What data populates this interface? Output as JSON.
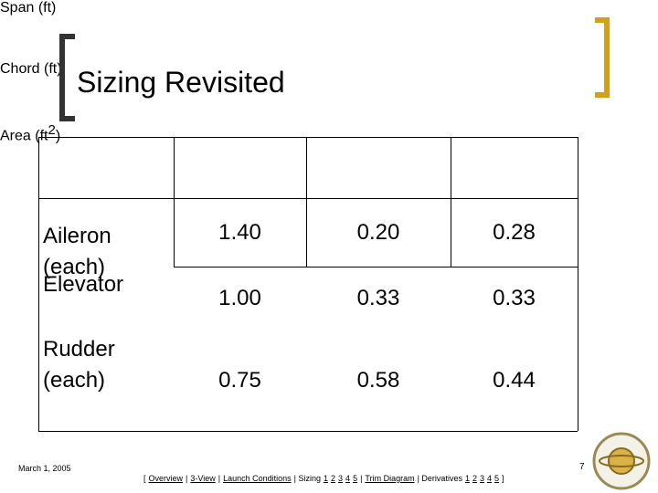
{
  "title": "Sizing Revisited",
  "table": {
    "header": [
      {
        "text": "Span (ft)"
      },
      {
        "text": "Chord (ft)"
      },
      {
        "text": "Area (ft",
        "sup": "2",
        "after": ")"
      }
    ],
    "rows": [
      {
        "label": "Aileron (each)",
        "values": [
          "1.40",
          "0.20",
          "0.28"
        ]
      },
      {
        "label": "Elevator",
        "values": [
          "1.00",
          "0.33",
          "0.33"
        ]
      },
      {
        "label": "Rudder (each)",
        "values": [
          "0.75",
          "0.58",
          "0.44"
        ]
      }
    ]
  },
  "footer": {
    "date": "March 1, 2005",
    "page": "7",
    "nav": [
      {
        "text": "[",
        "link": false
      },
      {
        "text": "Overview",
        "link": true
      },
      {
        "text": "|",
        "link": false
      },
      {
        "text": "3-View",
        "link": true
      },
      {
        "text": "|",
        "link": false
      },
      {
        "text": "Launch Conditions",
        "link": true
      },
      {
        "text": "| Sizing",
        "link": false
      },
      {
        "text": "1",
        "link": true
      },
      {
        "text": "2",
        "link": true
      },
      {
        "text": "3",
        "link": true
      },
      {
        "text": "4",
        "link": true
      },
      {
        "text": "5",
        "link": true
      },
      {
        "text": "|",
        "link": false
      },
      {
        "text": "Trim Diagram",
        "link": true
      },
      {
        "text": "| Derivatives",
        "link": false
      },
      {
        "text": "1",
        "link": true
      },
      {
        "text": "2",
        "link": true
      },
      {
        "text": "3",
        "link": true
      },
      {
        "text": "4",
        "link": true
      },
      {
        "text": "5",
        "link": true
      },
      {
        "text": "]",
        "link": false
      }
    ]
  }
}
